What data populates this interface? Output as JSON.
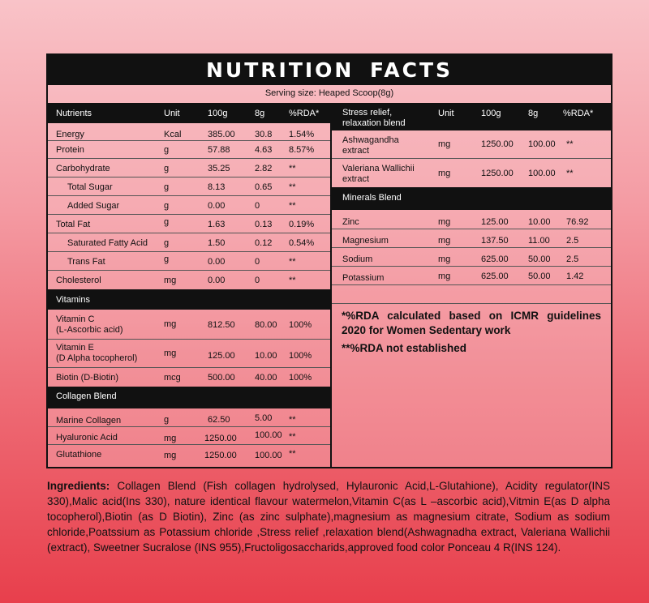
{
  "title": "NUTRITION  FACTS",
  "serving": "Serving size: Heaped Scoop(8g)",
  "left": {
    "header": [
      "Nutrients",
      "Unit",
      "100g",
      "8g",
      "%RDA*"
    ],
    "rows": [
      [
        "Energy",
        "Kcal",
        "385.00",
        "30.8",
        "1.54%"
      ],
      [
        "Protein",
        "g",
        "57.88",
        "4.63",
        "8.57%"
      ],
      [
        "Carbohydrate",
        "g",
        "35.25",
        "2.82",
        "**"
      ],
      [
        "Total Sugar",
        "g",
        "8.13",
        "0.65",
        "**"
      ],
      [
        "Added Sugar",
        "g",
        "0.00",
        "0",
        "**"
      ],
      [
        "Total Fat",
        "g",
        "1.63",
        "0.13",
        "0.19%"
      ],
      [
        "Saturated Fatty Acid",
        "g",
        "1.50",
        "0.12",
        "0.54%"
      ],
      [
        "Trans Fat",
        "g",
        "0.00",
        "0",
        "**"
      ],
      [
        "Cholesterol",
        "mg",
        "0.00",
        "0",
        "**"
      ]
    ],
    "vitamins_title": "Vitamins",
    "vitamins": [
      [
        "Vitamin C",
        "(L-Ascorbic acid)",
        "mg",
        "812.50",
        "80.00",
        "100%"
      ],
      [
        "Vitamin E",
        "(D Alpha tocopherol)",
        "mg",
        "125.00",
        "10.00",
        "100%"
      ],
      [
        "Biotin (D-Biotin)",
        "",
        "mcg",
        "500.00",
        "40.00",
        "100%"
      ]
    ],
    "collagen_title": "Collagen Blend",
    "collagen": [
      [
        "Marine Collagen",
        "g",
        "62.50",
        "5.00",
        "**"
      ],
      [
        "Hyaluronic Acid",
        "mg",
        "1250.00",
        "100.00",
        "**"
      ],
      [
        "Glutathione",
        "mg",
        "1250.00",
        "100.00",
        "**"
      ]
    ]
  },
  "right": {
    "header": [
      "Stress relief,",
      "relaxation blend",
      "Unit",
      "100g",
      "8g",
      "%RDA*"
    ],
    "stress": [
      [
        "Ashwagandha",
        "extract",
        "mg",
        "1250.00",
        "100.00",
        "**"
      ],
      [
        "Valeriana Wallichii",
        "extract",
        "mg",
        "1250.00",
        "100.00",
        "**"
      ]
    ],
    "minerals_title": "Minerals Blend",
    "minerals": [
      [
        "Zinc",
        "mg",
        "125.00",
        "10.00",
        "76.92"
      ],
      [
        "Magnesium",
        "mg",
        "137.50",
        "11.00",
        "2.5"
      ],
      [
        "Sodium",
        "mg",
        "625.00",
        "50.00",
        "2.5"
      ],
      [
        "Potassium",
        "mg",
        "625.00",
        "50.00",
        "1.42"
      ]
    ],
    "note1": "*%RDA calculated based on ICMR guidelines 2020 for Women Sedentary work",
    "note2": "**%RDA not established"
  },
  "ingredients_label": "Ingredients:",
  "ingredients_text": " Collagen Blend (Fish collagen hydrolysed, Hylauronic Acid,L-Glutahione), Acidity regulator(INS 330),Malic acid(Ins 330), nature identical flavour watermelon,Vitamin C(as L –ascorbic acid),Vitmin E(as D alpha tocopherol),Biotin (as D Biotin), Zinc (as zinc sulphate),magnesium as magnesium citrate, Sodium as sodium chloride,Poatssium as Potassium chloride ,Stress relief ,relaxation blend(Ashwagnadha extract, Valeriana Wallichii (extract), Sweetner Sucralose (INS 955),Fructoligosaccharids,approved food color Ponceau 4 R(INS 124)."
}
